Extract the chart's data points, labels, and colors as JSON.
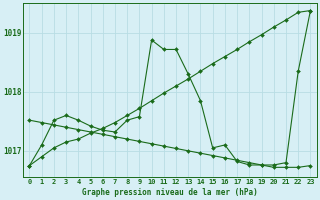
{
  "title": "Graphe pression niveau de la mer (hPa)",
  "background_color": "#d7eff5",
  "line_color": "#1a6b1a",
  "grid_color": "#b8dde4",
  "ylabel_ticks": [
    1017,
    1018,
    1019
  ],
  "xlim": [
    -0.5,
    23.5
  ],
  "ylim": [
    1016.55,
    1019.5
  ],
  "x": [
    0,
    1,
    2,
    3,
    4,
    5,
    6,
    7,
    8,
    9,
    10,
    11,
    12,
    13,
    14,
    15,
    16,
    17,
    18,
    19,
    20,
    21,
    22,
    23
  ],
  "xtick_labels": [
    "0",
    "1",
    "2",
    "3",
    "4",
    "5",
    "6",
    "7",
    "8",
    "9",
    "10",
    "11",
    "12",
    "13",
    "14",
    "15",
    "16",
    "17",
    "18",
    "19",
    "20",
    "21",
    "22",
    "23"
  ],
  "y_curvy": [
    1016.75,
    1017.1,
    1017.52,
    1017.6,
    1017.52,
    1017.42,
    1017.35,
    1017.32,
    1017.52,
    1017.58,
    1018.88,
    1018.72,
    1018.72,
    1018.3,
    1017.85,
    1017.05,
    1017.1,
    1016.82,
    1016.76,
    1016.76,
    1016.76,
    1016.8,
    1018.35,
    1019.38
  ],
  "y_diagonal_down": [
    1017.52,
    1017.48,
    1017.44,
    1017.4,
    1017.36,
    1017.32,
    1017.28,
    1017.24,
    1017.2,
    1017.16,
    1017.12,
    1017.08,
    1017.04,
    1017.0,
    1016.96,
    1016.92,
    1016.88,
    1016.84,
    1016.8,
    1016.76,
    1016.72,
    1016.72,
    1016.72,
    1016.75
  ],
  "y_diagonal_up": [
    1016.75,
    1016.9,
    1017.05,
    1017.15,
    1017.2,
    1017.3,
    1017.38,
    1017.48,
    1017.6,
    1017.72,
    1017.85,
    1017.98,
    1018.1,
    1018.22,
    1018.35,
    1018.48,
    1018.6,
    1018.72,
    1018.85,
    1018.97,
    1019.1,
    1019.22,
    1019.35,
    1019.38
  ],
  "marker": "D",
  "markersize": 2.0,
  "linewidth": 0.8,
  "title_fontsize": 5.5,
  "tick_fontsize": 5.0,
  "ytick_fontsize": 5.5
}
